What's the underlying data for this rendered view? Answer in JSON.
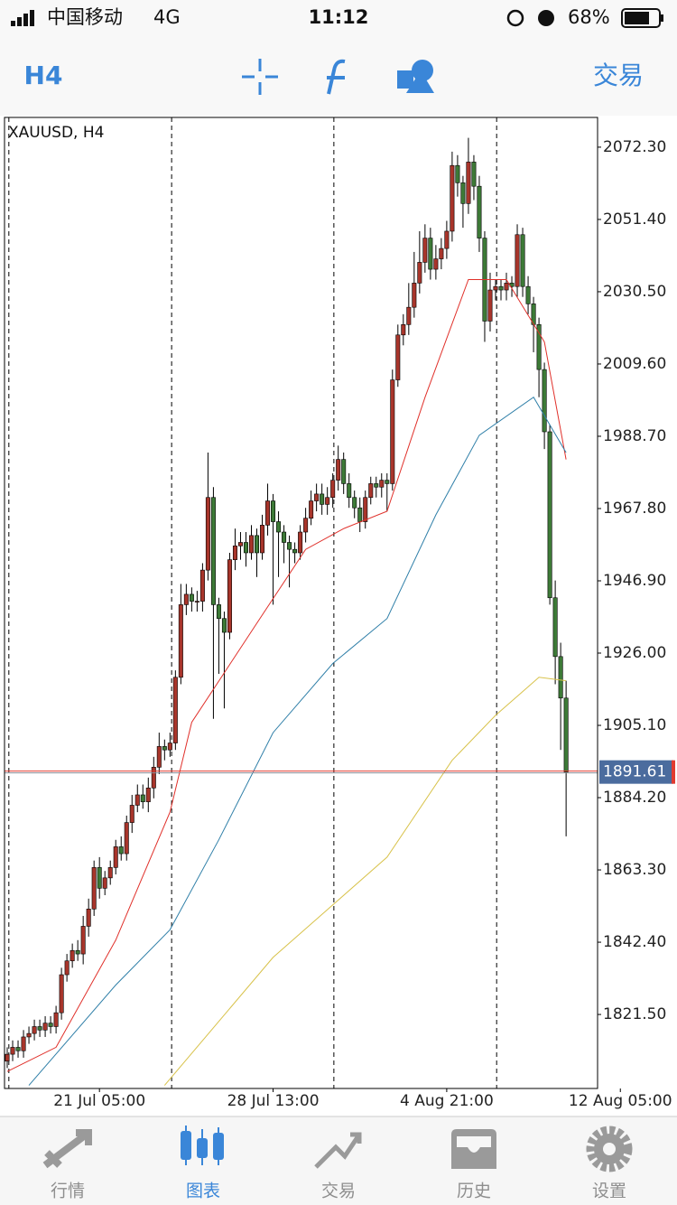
{
  "status_bar": {
    "carrier": "中国移动",
    "network": "4G",
    "time": "11:12",
    "battery": "68%"
  },
  "toolbar": {
    "timeframe": "H4",
    "trade": "交易"
  },
  "chart_data": {
    "type": "candlestick",
    "title": "XAUUSD, H4",
    "open": [
      1808,
      1810,
      1812,
      1811,
      1815,
      1816,
      1818,
      1817,
      1819,
      1818,
      1822,
      1833,
      1837,
      1840,
      1839,
      1847,
      1852,
      1864,
      1858,
      1861,
      1864,
      1870,
      1868,
      1877,
      1882,
      1885,
      1883,
      1887,
      1893,
      1899,
      1898,
      1900,
      1919,
      1940,
      1943,
      1941,
      1941,
      1950,
      1971,
      1940,
      1936,
      1932,
      1953,
      1957,
      1958,
      1955,
      1960,
      1955,
      1963,
      1970,
      1964,
      1961,
      1958,
      1956,
      1955,
      1961,
      1965,
      1970,
      1972,
      1969,
      1971,
      1976,
      1982,
      1975,
      1971,
      1968,
      1964,
      1971,
      1975,
      1974,
      1976,
      1975,
      2005,
      2018,
      2021,
      2026,
      2033,
      2039,
      2046,
      2037,
      2040,
      2043,
      2048,
      2067,
      2062,
      2056,
      2068,
      2061,
      2046,
      2022,
      2031,
      2032,
      2031,
      2033,
      2032,
      2047,
      2032,
      2027,
      2021,
      2008,
      1990,
      1942,
      1925,
      1913
    ],
    "high": [
      1812,
      1814,
      1814,
      1817,
      1818,
      1820,
      1820,
      1821,
      1821,
      1824,
      1835,
      1839,
      1842,
      1843,
      1850,
      1855,
      1866,
      1867,
      1863,
      1866,
      1872,
      1873,
      1879,
      1885,
      1888,
      1888,
      1890,
      1896,
      1903,
      1901,
      1903,
      1921,
      1946,
      1946,
      1945,
      1944,
      1952,
      1984,
      1974,
      1942,
      1938,
      1955,
      1962,
      1961,
      1961,
      1963,
      1962,
      1966,
      1975,
      1972,
      1967,
      1963,
      1960,
      1958,
      1963,
      1968,
      1973,
      1975,
      1975,
      1974,
      1978,
      1986,
      1984,
      1978,
      1973,
      1971,
      1973,
      1977,
      1977,
      1978,
      1978,
      2008,
      2021,
      2024,
      2033,
      2042,
      2048,
      2050,
      2049,
      2044,
      2046,
      2051,
      2071,
      2070,
      2064,
      2075,
      2070,
      2064,
      2048,
      2036,
      2034,
      2034,
      2036,
      2035,
      2050,
      2049,
      2035,
      2029,
      2023,
      2010,
      1992,
      1947,
      1929,
      1918
    ],
    "low": [
      1806,
      1808,
      1809,
      1809,
      1813,
      1814,
      1815,
      1815,
      1816,
      1816,
      1820,
      1831,
      1835,
      1837,
      1836,
      1844,
      1850,
      1855,
      1856,
      1859,
      1862,
      1866,
      1866,
      1874,
      1880,
      1881,
      1880,
      1884,
      1891,
      1895,
      1896,
      1898,
      1917,
      1937,
      1938,
      1938,
      1938,
      1947,
      1907,
      1920,
      1910,
      1930,
      1950,
      1953,
      1951,
      1953,
      1948,
      1953,
      1960,
      1940,
      1948,
      1952,
      1945,
      1952,
      1953,
      1958,
      1963,
      1967,
      1966,
      1966,
      1968,
      1973,
      1972,
      1968,
      1965,
      1961,
      1962,
      1969,
      1971,
      1971,
      1967,
      1973,
      2003,
      2015,
      2018,
      2023,
      2030,
      2036,
      2034,
      2034,
      2037,
      2040,
      2045,
      2058,
      2049,
      2053,
      2057,
      2042,
      2016,
      2019,
      2028,
      2028,
      2028,
      2029,
      2029,
      2029,
      2024,
      2013,
      2000,
      1985,
      1940,
      1917,
      1898,
      1873
    ],
    "close": [
      1810,
      1812,
      1811,
      1815,
      1816,
      1818,
      1817,
      1819,
      1818,
      1822,
      1833,
      1837,
      1840,
      1839,
      1847,
      1852,
      1864,
      1858,
      1861,
      1864,
      1870,
      1868,
      1877,
      1882,
      1885,
      1883,
      1887,
      1893,
      1899,
      1898,
      1900,
      1919,
      1940,
      1943,
      1941,
      1941,
      1950,
      1971,
      1940,
      1936,
      1932,
      1953,
      1957,
      1958,
      1955,
      1960,
      1955,
      1963,
      1970,
      1964,
      1961,
      1958,
      1956,
      1955,
      1961,
      1965,
      1970,
      1972,
      1969,
      1971,
      1976,
      1982,
      1975,
      1971,
      1968,
      1964,
      1971,
      1975,
      1974,
      1976,
      1975,
      2005,
      2018,
      2021,
      2026,
      2033,
      2039,
      2046,
      2037,
      2040,
      2043,
      2048,
      2067,
      2062,
      2056,
      2068,
      2061,
      2046,
      2022,
      2031,
      2032,
      2031,
      2033,
      2032,
      2047,
      2032,
      2027,
      2021,
      2008,
      1990,
      1942,
      1925,
      1913,
      1891.61
    ],
    "up_color": "#a8352b",
    "down_color": "#3d7a37",
    "series": [
      {
        "color": "#e0302a",
        "x": [
          0,
          9,
          20,
          30,
          34,
          47,
          55,
          62,
          70,
          77,
          85,
          92,
          99,
          103
        ],
        "values": [
          1805,
          1812,
          1843,
          1880,
          1906,
          1937,
          1956,
          1962,
          1967,
          2000,
          2034,
          2034,
          2016,
          1982
        ]
      },
      {
        "color": "#2f7fa8",
        "x": [
          4,
          20,
          30,
          39,
          49,
          60,
          70,
          79,
          87,
          97,
          103
        ],
        "values": [
          1801,
          1830,
          1846,
          1872,
          1903,
          1923,
          1936,
          1966,
          1989,
          2000,
          1984
        ]
      },
      {
        "color": "#d8c24a",
        "x": [
          29,
          49,
          70,
          82,
          90,
          98,
          103
        ],
        "values": [
          1801,
          1838,
          1867,
          1895,
          1908,
          1919,
          1918
        ]
      }
    ],
    "xlim": [
      -0.5,
      108.8
    ],
    "ylim": [
      1800.1,
      2080.9
    ],
    "xticks": [
      {
        "value": 17,
        "label": "21 Jul 05:00"
      },
      {
        "value": 49,
        "label": "28 Jul 13:00"
      },
      {
        "value": 81,
        "label": "4 Aug 21:00"
      },
      {
        "value": 113,
        "label": "12 Aug 05:00"
      }
    ],
    "yticks": [
      {
        "value": 2072.3,
        "label": "2072.30"
      },
      {
        "value": 2051.4,
        "label": "2051.40"
      },
      {
        "value": 2030.5,
        "label": "2030.50"
      },
      {
        "value": 2009.6,
        "label": "2009.60"
      },
      {
        "value": 1988.7,
        "label": "1988.70"
      },
      {
        "value": 1967.8,
        "label": "1967.80"
      },
      {
        "value": 1946.9,
        "label": "1946.90"
      },
      {
        "value": 1926,
        "label": "1926.00"
      },
      {
        "value": 1905.1,
        "label": "1905.10"
      },
      {
        "value": 1884.2,
        "label": "1884.20"
      },
      {
        "value": 1863.3,
        "label": "1863.30"
      },
      {
        "value": 1842.4,
        "label": "1842.40"
      },
      {
        "value": 1821.5,
        "label": "1821.50"
      }
    ],
    "separators": [
      0.3,
      30.3,
      60.2,
      90.2
    ],
    "last_price": 1891.61,
    "grid": false
  },
  "tab_bar": {
    "tabs": [
      "行情",
      "图表",
      "交易",
      "历史",
      "设置"
    ],
    "active": 1
  }
}
